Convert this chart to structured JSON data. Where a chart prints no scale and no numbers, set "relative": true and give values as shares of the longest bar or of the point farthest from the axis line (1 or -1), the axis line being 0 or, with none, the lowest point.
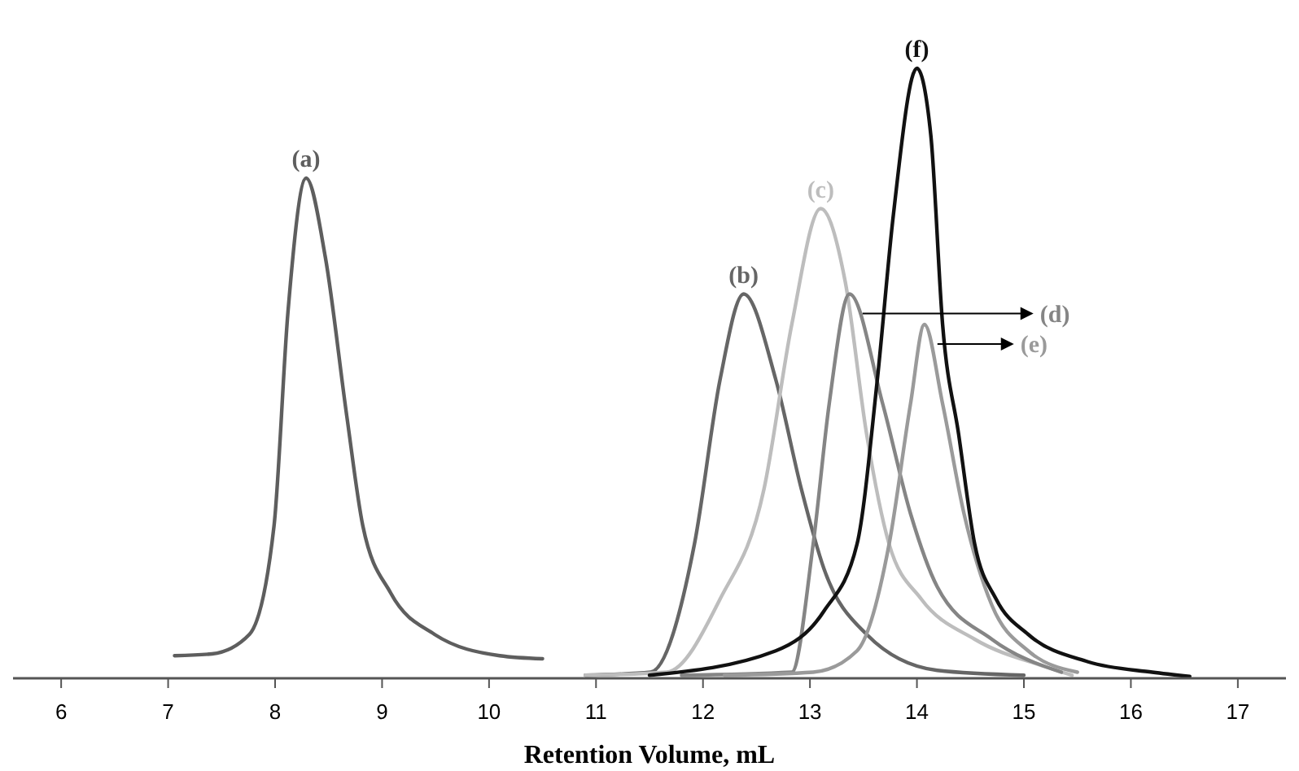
{
  "chart_data": {
    "type": "line",
    "relative": true,
    "xlabel": "Retention Volume, mL",
    "xlim": [
      5.55,
      17.45
    ],
    "xticks": [
      6,
      7,
      8,
      9,
      10,
      11,
      12,
      13,
      14,
      15,
      16,
      17
    ],
    "line_style": "solid",
    "series": [
      {
        "name": "(a)",
        "color": "#5e5e5e",
        "x": [
          7.06,
          7.41,
          7.76,
          7.99,
          8.12,
          8.29,
          8.47,
          8.67,
          8.82,
          9.08,
          9.49,
          10.1,
          10.5
        ],
        "values": [
          0.037,
          0.04,
          0.072,
          0.25,
          0.6,
          0.82,
          0.69,
          0.43,
          0.25,
          0.14,
          0.072,
          0.037,
          0.032
        ]
      },
      {
        "name": "(b)",
        "color": "#666666",
        "x": [
          10.9,
          11.51,
          11.92,
          12.16,
          12.38,
          12.68,
          12.92,
          13.13,
          13.53,
          14.19,
          15.0
        ],
        "values": [
          0.005,
          0.01,
          0.22,
          0.49,
          0.63,
          0.49,
          0.31,
          0.18,
          0.072,
          0.013,
          0.005
        ]
      },
      {
        "name": "(c)",
        "color": "#bdbdbd",
        "x": [
          10.9,
          11.66,
          12.16,
          12.57,
          12.83,
          13.1,
          13.33,
          13.53,
          13.74,
          14.04,
          14.54,
          15.2,
          15.45
        ],
        "values": [
          0.005,
          0.01,
          0.13,
          0.31,
          0.58,
          0.77,
          0.65,
          0.4,
          0.22,
          0.13,
          0.064,
          0.019,
          0.005
        ]
      },
      {
        "name": "(d)",
        "color": "#858585",
        "x": [
          11.8,
          12.83,
          13.03,
          13.18,
          13.37,
          13.68,
          13.94,
          14.19,
          14.7,
          15.35
        ],
        "values": [
          0.005,
          0.01,
          0.22,
          0.45,
          0.63,
          0.45,
          0.27,
          0.15,
          0.064,
          0.01
        ]
      },
      {
        "name": "(e)",
        "color": "#9a9a9a",
        "x": [
          12.2,
          13.03,
          13.44,
          13.74,
          13.94,
          14.07,
          14.24,
          14.44,
          14.7,
          15.04,
          15.5
        ],
        "values": [
          0.005,
          0.01,
          0.045,
          0.22,
          0.45,
          0.58,
          0.45,
          0.27,
          0.12,
          0.045,
          0.01
        ]
      },
      {
        "name": "(f)",
        "color": "#111111",
        "x": [
          11.5,
          12.68,
          13.13,
          13.44,
          13.63,
          13.78,
          14.0,
          14.13,
          14.24,
          14.39,
          14.54,
          14.74,
          15.04,
          15.6,
          16.2,
          16.55
        ],
        "values": [
          0.005,
          0.045,
          0.11,
          0.22,
          0.49,
          0.76,
          1,
          0.89,
          0.58,
          0.4,
          0.22,
          0.13,
          0.072,
          0.027,
          0.01,
          0.003
        ]
      }
    ]
  }
}
